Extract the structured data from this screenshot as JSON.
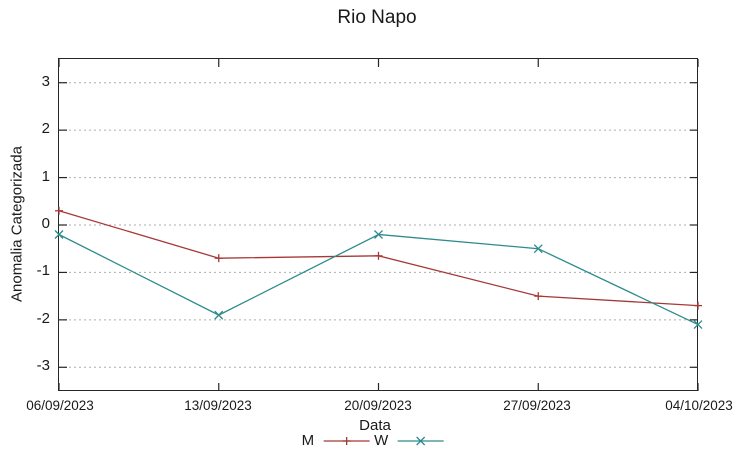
{
  "chart_data": {
    "type": "line",
    "title": "Rio Napo",
    "xlabel": "Data",
    "ylabel": "Anomalia Categorizada",
    "categories": [
      "06/09/2023",
      "13/09/2023",
      "20/09/2023",
      "27/09/2023",
      "04/10/2023"
    ],
    "series": [
      {
        "name": "M",
        "color": "#a63838",
        "marker": "plus",
        "values": [
          0.3,
          -0.7,
          -0.65,
          -1.5,
          -1.7
        ]
      },
      {
        "name": "W",
        "color": "#2e8b8b",
        "marker": "cross",
        "values": [
          -0.2,
          -1.9,
          -0.2,
          -0.5,
          -2.1
        ]
      }
    ],
    "ylim": [
      -3.5,
      3.5
    ],
    "yticks": [
      3,
      2,
      1,
      0,
      -1,
      -2,
      -3
    ],
    "grid": "horizontal-dashed",
    "legend_position": "bottom-center",
    "background_color": "#ffffff",
    "text_color": "#1a1a1a"
  }
}
